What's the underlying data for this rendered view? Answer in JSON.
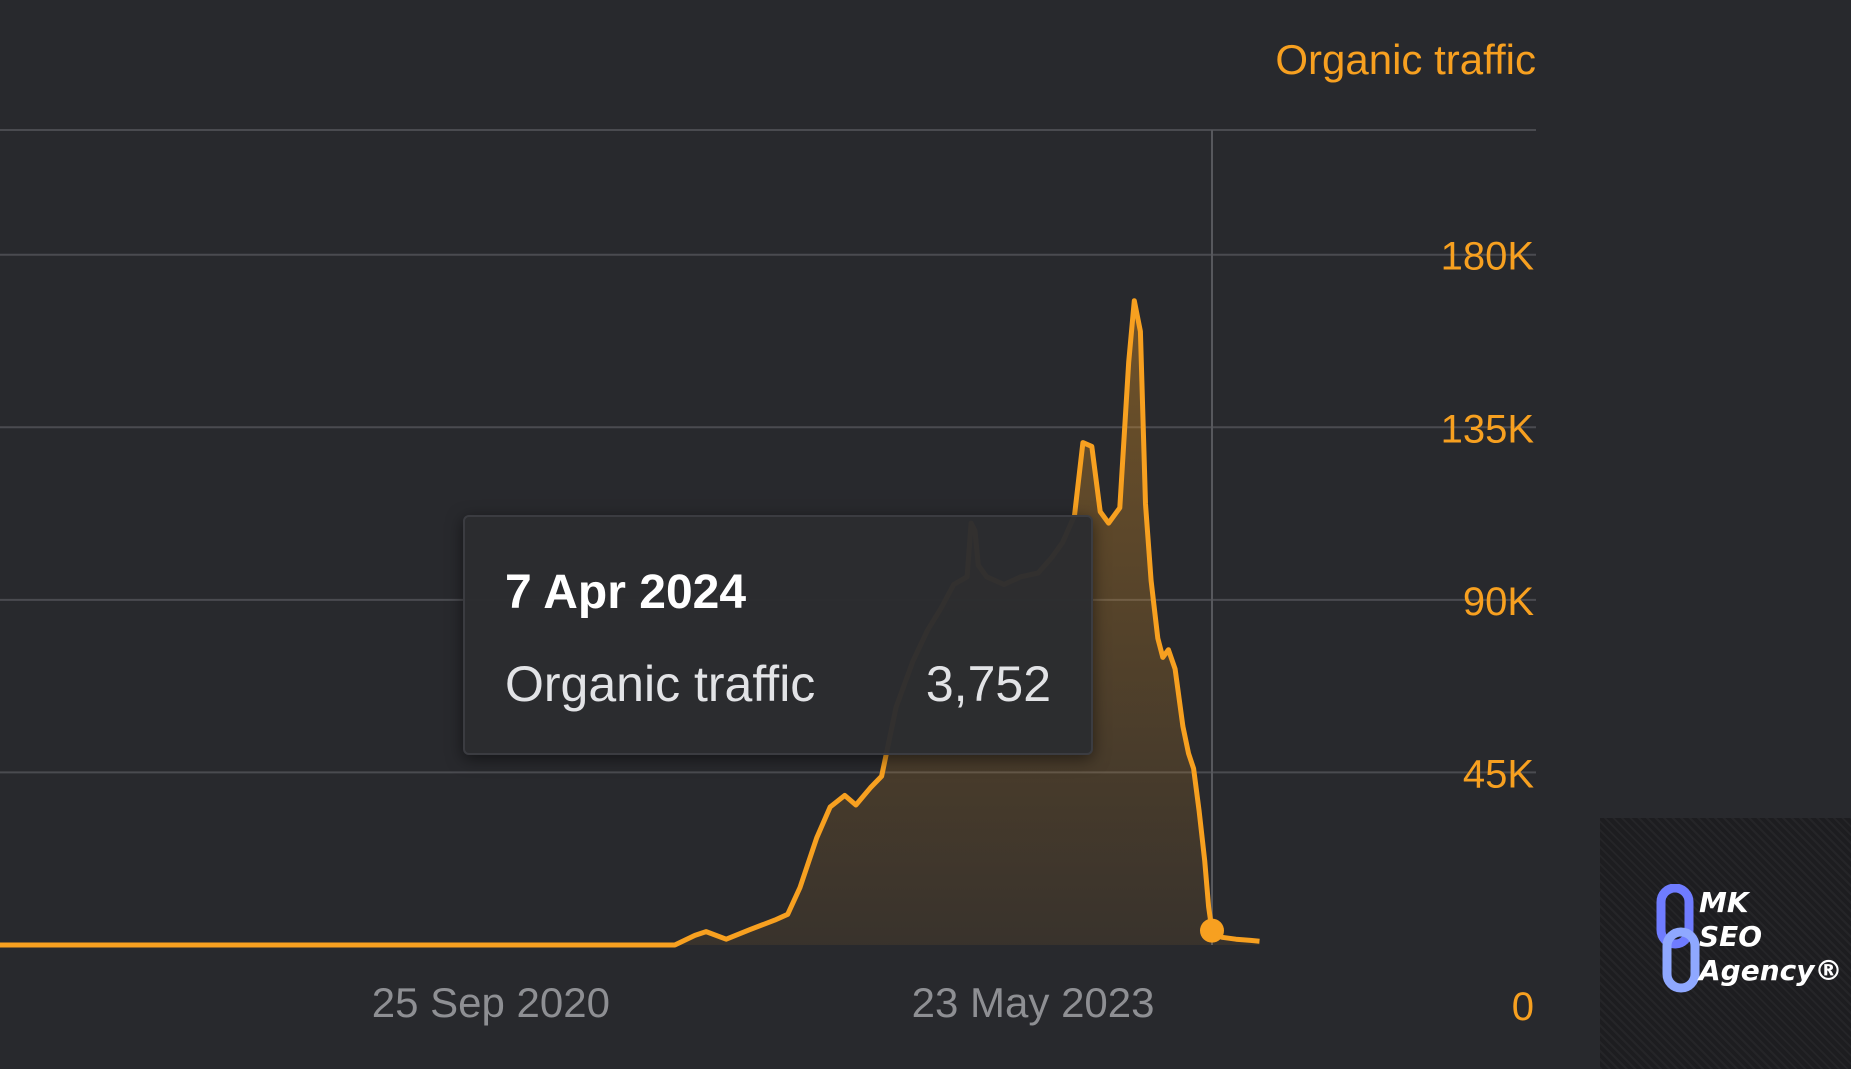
{
  "chart_data": {
    "type": "area",
    "series_title": "Organic traffic",
    "y_ticks": [
      "180K",
      "135K",
      "90K",
      "45K",
      "0"
    ],
    "y_tick_values": [
      180000,
      135000,
      90000,
      45000,
      0
    ],
    "x_ticks": [
      "25 Sep 2020",
      "23 May 2023"
    ],
    "x_tick_dates": [
      "2020-09-25",
      "2023-05-23"
    ],
    "ylim": [
      0,
      200000
    ],
    "xlim": [
      "2018-05-01",
      "2024-04-07"
    ],
    "grid": true,
    "color": "#f7a020",
    "series": [
      {
        "name": "Organic traffic",
        "points": [
          [
            "2018-05-01",
            0
          ],
          [
            "2019-01-01",
            0
          ],
          [
            "2020-01-01",
            0
          ],
          [
            "2021-01-01",
            0
          ],
          [
            "2021-08-20",
            0
          ],
          [
            "2021-09-25",
            2500
          ],
          [
            "2021-10-15",
            3500
          ],
          [
            "2021-11-20",
            1500
          ],
          [
            "2022-01-01",
            4000
          ],
          [
            "2022-02-15",
            6500
          ],
          [
            "2022-03-10",
            8000
          ],
          [
            "2022-04-01",
            15000
          ],
          [
            "2022-05-01",
            28000
          ],
          [
            "2022-05-25",
            36000
          ],
          [
            "2022-06-20",
            39000
          ],
          [
            "2022-07-10",
            36500
          ],
          [
            "2022-08-05",
            41000
          ],
          [
            "2022-08-25",
            44000
          ],
          [
            "2022-09-20",
            62000
          ],
          [
            "2022-10-20",
            74000
          ],
          [
            "2022-11-15",
            82000
          ],
          [
            "2022-12-10",
            88000
          ],
          [
            "2023-01-01",
            94000
          ],
          [
            "2023-01-25",
            96000
          ],
          [
            "2023-02-01",
            110000
          ],
          [
            "2023-02-08",
            108000
          ],
          [
            "2023-02-14",
            99000
          ],
          [
            "2023-03-01",
            96000
          ],
          [
            "2023-04-01",
            94000
          ],
          [
            "2023-05-01",
            96000
          ],
          [
            "2023-06-01",
            97000
          ],
          [
            "2023-06-25",
            101000
          ],
          [
            "2023-07-15",
            105000
          ],
          [
            "2023-08-05",
            112000
          ],
          [
            "2023-08-20",
            131000
          ],
          [
            "2023-09-05",
            130000
          ],
          [
            "2023-09-20",
            113000
          ],
          [
            "2023-10-05",
            110000
          ],
          [
            "2023-10-25",
            114000
          ],
          [
            "2023-11-10",
            152000
          ],
          [
            "2023-11-20",
            168000
          ],
          [
            "2023-12-01",
            160000
          ],
          [
            "2023-12-10",
            115000
          ],
          [
            "2023-12-20",
            95000
          ],
          [
            "2024-01-01",
            80000
          ],
          [
            "2024-01-10",
            75000
          ],
          [
            "2024-01-20",
            77000
          ],
          [
            "2024-02-01",
            72000
          ],
          [
            "2024-02-15",
            57000
          ],
          [
            "2024-02-25",
            50000
          ],
          [
            "2024-03-05",
            46000
          ],
          [
            "2024-03-15",
            35000
          ],
          [
            "2024-03-25",
            22000
          ],
          [
            "2024-04-01",
            10000
          ],
          [
            "2024-04-07",
            3752
          ],
          [
            "2024-04-25",
            2000
          ],
          [
            "2024-05-20",
            1500
          ],
          [
            "2024-06-15",
            1200
          ],
          [
            "2024-07-01",
            1000
          ]
        ]
      }
    ],
    "hover_point": {
      "date": "2024-04-07",
      "value": 3752
    },
    "tooltip": {
      "date": "7 Apr 2024",
      "label": "Organic traffic",
      "value": "3,752"
    }
  },
  "watermark": {
    "line1": "MK",
    "line2": "SEO",
    "line3": "Agency®"
  }
}
